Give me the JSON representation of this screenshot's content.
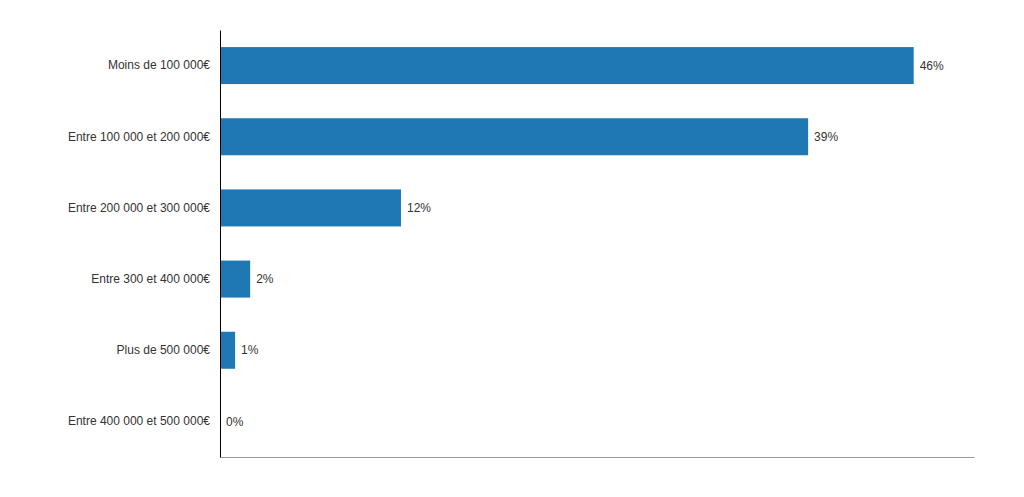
{
  "chart_data": {
    "type": "bar",
    "orientation": "horizontal",
    "categories": [
      "Moins de 100 000€",
      "Entre 100 000 et 200 000€",
      "Entre 200 000 et 300 000€",
      "Entre 300 et 400 000€",
      "Plus de 500 000€",
      "Entre 400 000 et 500 000€"
    ],
    "values": [
      46,
      39,
      12,
      2,
      1,
      0
    ],
    "value_labels": [
      "46%",
      "39%",
      "12%",
      "2%",
      "1%",
      "0%"
    ],
    "data_labels": true,
    "xlim": [
      0,
      50
    ],
    "tick_labels": "y",
    "grid": false
  }
}
